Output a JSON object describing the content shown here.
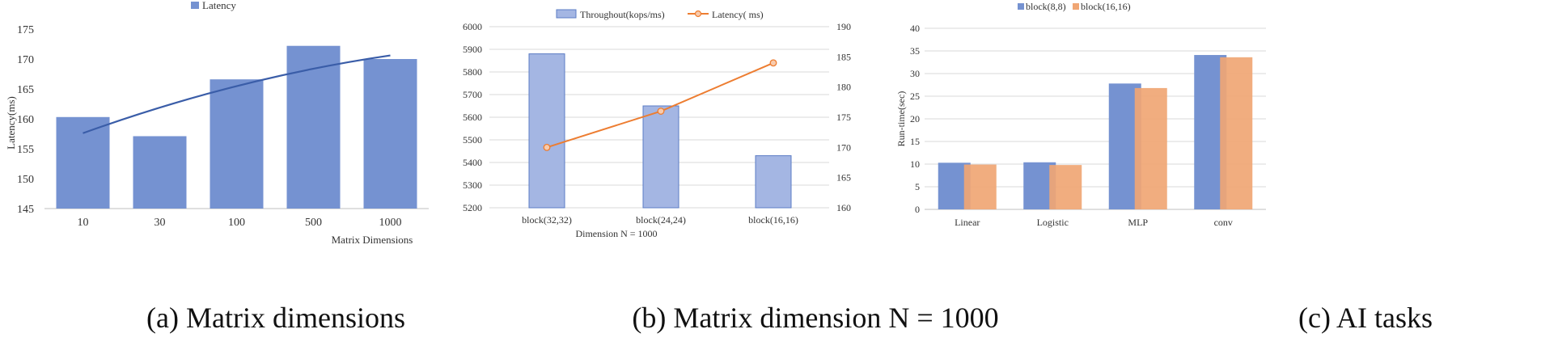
{
  "figure": {
    "captions": [
      "(a) Matrix dimensions",
      "(b) Matrix dimension N = 1000",
      "(c) AI tasks"
    ]
  },
  "colors": {
    "bar_blue": "#7592d1",
    "bar_blue_b": "#a4b6e3",
    "bar_orange": "#f0a674",
    "trend_blue": "#3a5da8",
    "line_orange": "#ed7d31",
    "grid": "#d9d9d9",
    "axis": "#bfbfbf"
  },
  "chart_data": [
    {
      "type": "bar",
      "categories": [
        "10",
        "30",
        "100",
        "500",
        "1000"
      ],
      "series": [
        {
          "name": "Latency",
          "values": [
            160.3,
            157.1,
            166.6,
            172.2,
            170.0
          ]
        }
      ],
      "trendline": {
        "from": 157.6,
        "to": 170.6
      },
      "title": "",
      "xlabel": "Matrix Dimensions",
      "ylabel": "Latency(ms)",
      "ylim": [
        145,
        175
      ],
      "yticks": [
        "145",
        "150",
        "155",
        "160",
        "165",
        "170",
        "175"
      ],
      "legend": "top-left",
      "grid": false
    },
    {
      "type": "bar",
      "categories": [
        "block(32,32)",
        "block(24,24)",
        "block(16,16)"
      ],
      "series": [
        {
          "name": "Throughout(kops/ms)",
          "type": "bar",
          "axis": "left",
          "values": [
            5880,
            5650,
            5430
          ]
        },
        {
          "name": "Latency( ms)",
          "type": "line",
          "axis": "right",
          "values": [
            170,
            176,
            184
          ]
        }
      ],
      "title": "",
      "xlabel": "Dimension N = 1000",
      "ylim": [
        5200,
        6000
      ],
      "yticks": [
        "5200",
        "5300",
        "5400",
        "5500",
        "5600",
        "5700",
        "5800",
        "5900",
        "6000"
      ],
      "y2lim": [
        160,
        190
      ],
      "y2ticks": [
        "160",
        "165",
        "170",
        "175",
        "180",
        "185",
        "190"
      ],
      "legend": "top-center",
      "grid": true
    },
    {
      "type": "bar",
      "categories": [
        "Linear",
        "Logistic",
        "MLP",
        "conv"
      ],
      "series": [
        {
          "name": "block(8,8)",
          "values": [
            10.3,
            10.4,
            27.8,
            34.1
          ]
        },
        {
          "name": "block(16,16)",
          "values": [
            9.9,
            9.8,
            26.8,
            33.6
          ]
        }
      ],
      "title": "",
      "xlabel": "",
      "ylabel": "Run-time(sec)",
      "ylim": [
        0,
        40
      ],
      "yticks": [
        "0",
        "5",
        "10",
        "15",
        "20",
        "25",
        "30",
        "35",
        "40"
      ],
      "legend": "top-left",
      "grid": true
    }
  ]
}
